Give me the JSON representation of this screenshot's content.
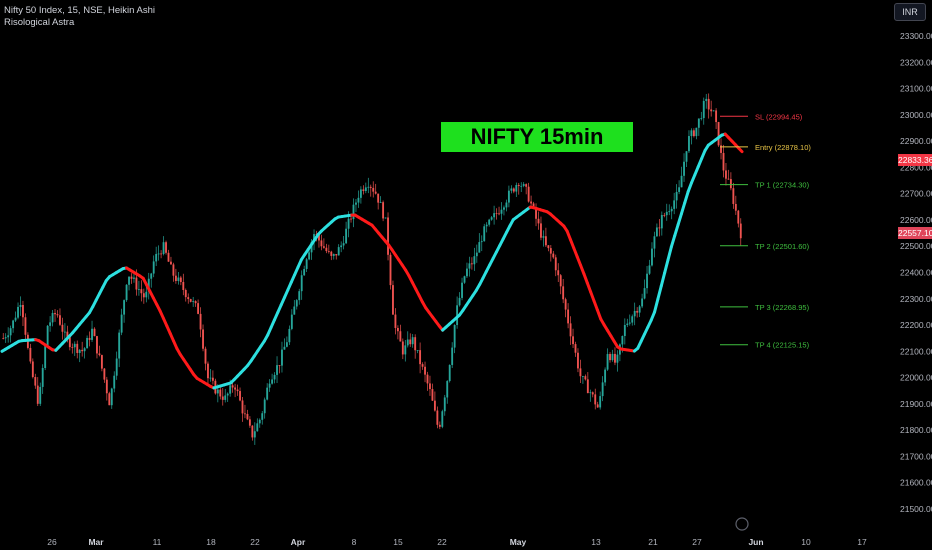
{
  "header": {
    "title": "Nifty 50 Index, 15, NSE, Heikin Ashi",
    "indicator": "Risological Astra"
  },
  "currency": "INR",
  "banner": "NIFTY 15min Chart",
  "price_tags": {
    "red": "22833.36",
    "current": "22557.10"
  },
  "colors": {
    "up": "#26a69a",
    "down": "#ef5350",
    "trend_up": "#2de0e0",
    "trend_down": "#ff1a1a",
    "banner": "#1ee01e"
  },
  "chart_data": {
    "type": "line",
    "title": "NIFTY 15min Chart",
    "y_ticks": [
      21500,
      21600,
      21700,
      21800,
      21900,
      22000,
      22100,
      22200,
      22300,
      22400,
      22500,
      22600,
      22700,
      22800,
      22900,
      23000,
      23100,
      23200,
      23300
    ],
    "ylim": [
      21460,
      23340
    ],
    "x_ticks": [
      {
        "label": "26",
        "bold": false
      },
      {
        "label": "Mar",
        "bold": true
      },
      {
        "label": "11",
        "bold": false
      },
      {
        "label": "18",
        "bold": false
      },
      {
        "label": "22",
        "bold": false
      },
      {
        "label": "Apr",
        "bold": true
      },
      {
        "label": "8",
        "bold": false
      },
      {
        "label": "15",
        "bold": false
      },
      {
        "label": "22",
        "bold": false
      },
      {
        "label": "May",
        "bold": true
      },
      {
        "label": "13",
        "bold": false
      },
      {
        "label": "21",
        "bold": false
      },
      {
        "label": "27",
        "bold": false
      },
      {
        "label": "Jun",
        "bold": true
      },
      {
        "label": "10",
        "bold": false
      },
      {
        "label": "17",
        "bold": false
      }
    ],
    "price_series": [
      22150,
      22200,
      22300,
      22050,
      21900,
      22200,
      22250,
      22150,
      22120,
      22100,
      22180,
      22050,
      21900,
      22150,
      22400,
      22350,
      22300,
      22450,
      22500,
      22400,
      22350,
      22300,
      22250,
      22000,
      21950,
      21920,
      21980,
      21870,
      21780,
      21850,
      22000,
      22050,
      22150,
      22300,
      22450,
      22550,
      22500,
      22450,
      22500,
      22600,
      22700,
      22750,
      22700,
      22600,
      22200,
      22100,
      22150,
      22050,
      21950,
      21800,
      22000,
      22250,
      22400,
      22450,
      22550,
      22600,
      22650,
      22700,
      22750,
      22700,
      22600,
      22500,
      22450,
      22300,
      22150,
      22000,
      21950,
      21880,
      22100,
      22050,
      22200,
      22250,
      22300,
      22500,
      22600,
      22650,
      22700,
      22900,
      22950,
      23050,
      23000,
      22800,
      22700,
      22550
    ],
    "trend_series": [
      {
        "name": "",
        "values": [
          22100,
          22140,
          22145,
          22100,
          22170,
          22250,
          22380,
          22420,
          22380,
          22250,
          22100,
          22000,
          21960,
          21980,
          22050,
          22150,
          22300,
          22450,
          22550,
          22610,
          22620,
          22580,
          22500,
          22400,
          22270,
          22180,
          22240,
          22340,
          22470,
          22600,
          22650,
          22630,
          22570,
          22400,
          22220,
          22110,
          22100,
          22240,
          22500,
          22720,
          22880,
          22930,
          22860
        ]
      }
    ],
    "levels": [
      {
        "label": "SL (22994.45)",
        "value": 22994.45,
        "color": "#f23645"
      },
      {
        "label": "Entry (22878.10)",
        "value": 22878.1,
        "color": "#e8c547"
      },
      {
        "label": "TP 1 (22734.30)",
        "value": 22734.3,
        "color": "#3fbf3f"
      },
      {
        "label": "TP 2 (22501.60)",
        "value": 22501.6,
        "color": "#3fbf3f"
      },
      {
        "label": "TP 3 (22268.95)",
        "value": 22268.95,
        "color": "#3fbf3f"
      },
      {
        "label": "TP 4 (22125.15)",
        "value": 22125.15,
        "color": "#3fbf3f"
      }
    ]
  }
}
